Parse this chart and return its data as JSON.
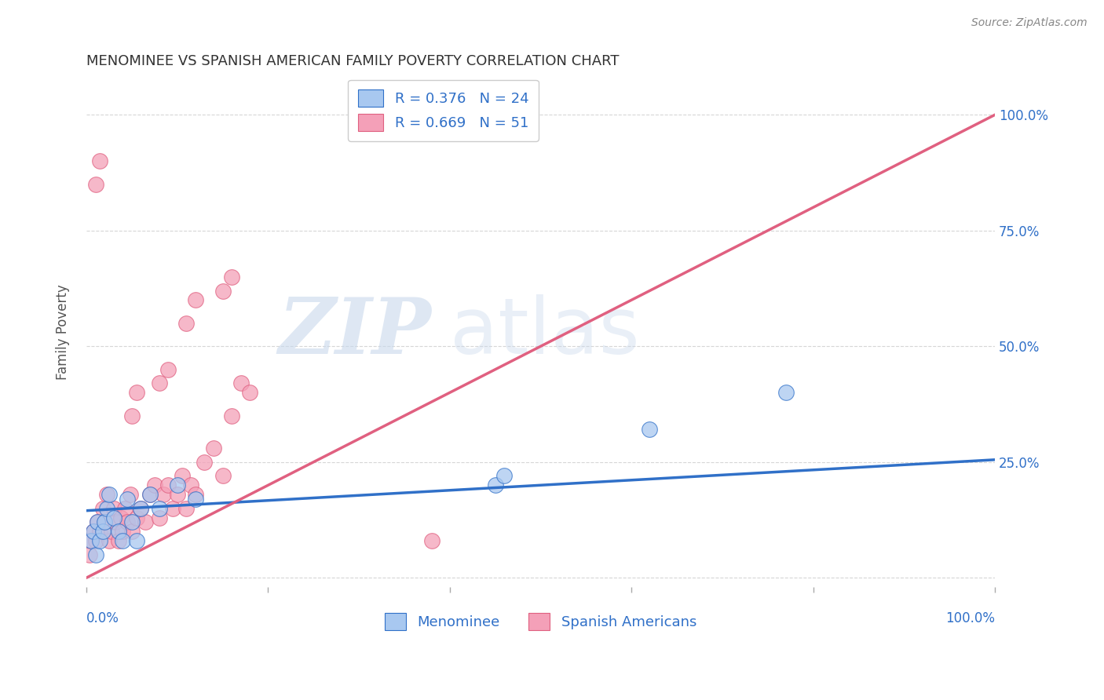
{
  "title": "MENOMINEE VS SPANISH AMERICAN FAMILY POVERTY CORRELATION CHART",
  "source": "Source: ZipAtlas.com",
  "ylabel": "Family Poverty",
  "xlim": [
    0,
    1
  ],
  "ylim": [
    -0.02,
    1.08
  ],
  "menominee_color": "#A8C8F0",
  "spanish_color": "#F4A0B8",
  "menominee_line_color": "#3070C8",
  "spanish_line_color": "#E06080",
  "legend_R1": "R = 0.376",
  "legend_N1": "N = 24",
  "legend_R2": "R = 0.669",
  "legend_N2": "N = 51",
  "legend_text_color": "#3070C8",
  "watermark_zip": "ZIP",
  "watermark_atlas": "atlas",
  "menominee_x": [
    0.005,
    0.008,
    0.01,
    0.012,
    0.015,
    0.018,
    0.02,
    0.022,
    0.025,
    0.03,
    0.035,
    0.04,
    0.045,
    0.05,
    0.055,
    0.06,
    0.07,
    0.08,
    0.1,
    0.12,
    0.45,
    0.46,
    0.62,
    0.77
  ],
  "menominee_y": [
    0.08,
    0.1,
    0.05,
    0.12,
    0.08,
    0.1,
    0.12,
    0.15,
    0.18,
    0.13,
    0.1,
    0.08,
    0.17,
    0.12,
    0.08,
    0.15,
    0.18,
    0.15,
    0.2,
    0.17,
    0.2,
    0.22,
    0.32,
    0.4
  ],
  "spanish_x": [
    0.003,
    0.005,
    0.008,
    0.01,
    0.012,
    0.015,
    0.018,
    0.02,
    0.022,
    0.025,
    0.028,
    0.03,
    0.032,
    0.035,
    0.038,
    0.04,
    0.042,
    0.045,
    0.048,
    0.05,
    0.055,
    0.06,
    0.065,
    0.07,
    0.075,
    0.08,
    0.085,
    0.09,
    0.095,
    0.1,
    0.105,
    0.11,
    0.115,
    0.12,
    0.13,
    0.14,
    0.15,
    0.16,
    0.17,
    0.18,
    0.05,
    0.055,
    0.08,
    0.09,
    0.11,
    0.12,
    0.15,
    0.16,
    0.38,
    0.01,
    0.015
  ],
  "spanish_y": [
    0.05,
    0.08,
    0.1,
    0.08,
    0.12,
    0.1,
    0.15,
    0.12,
    0.18,
    0.08,
    0.1,
    0.15,
    0.12,
    0.08,
    0.13,
    0.1,
    0.15,
    0.12,
    0.18,
    0.1,
    0.13,
    0.15,
    0.12,
    0.18,
    0.2,
    0.13,
    0.18,
    0.2,
    0.15,
    0.18,
    0.22,
    0.15,
    0.2,
    0.18,
    0.25,
    0.28,
    0.22,
    0.35,
    0.42,
    0.4,
    0.35,
    0.4,
    0.42,
    0.45,
    0.55,
    0.6,
    0.62,
    0.65,
    0.08,
    0.85,
    0.9
  ],
  "menominee_trendline": [
    0.0,
    1.0,
    0.145,
    0.255
  ],
  "spanish_trendline": [
    0.0,
    1.0,
    0.0,
    1.0
  ],
  "grid_color": "#CCCCCC",
  "background_color": "#FFFFFF"
}
